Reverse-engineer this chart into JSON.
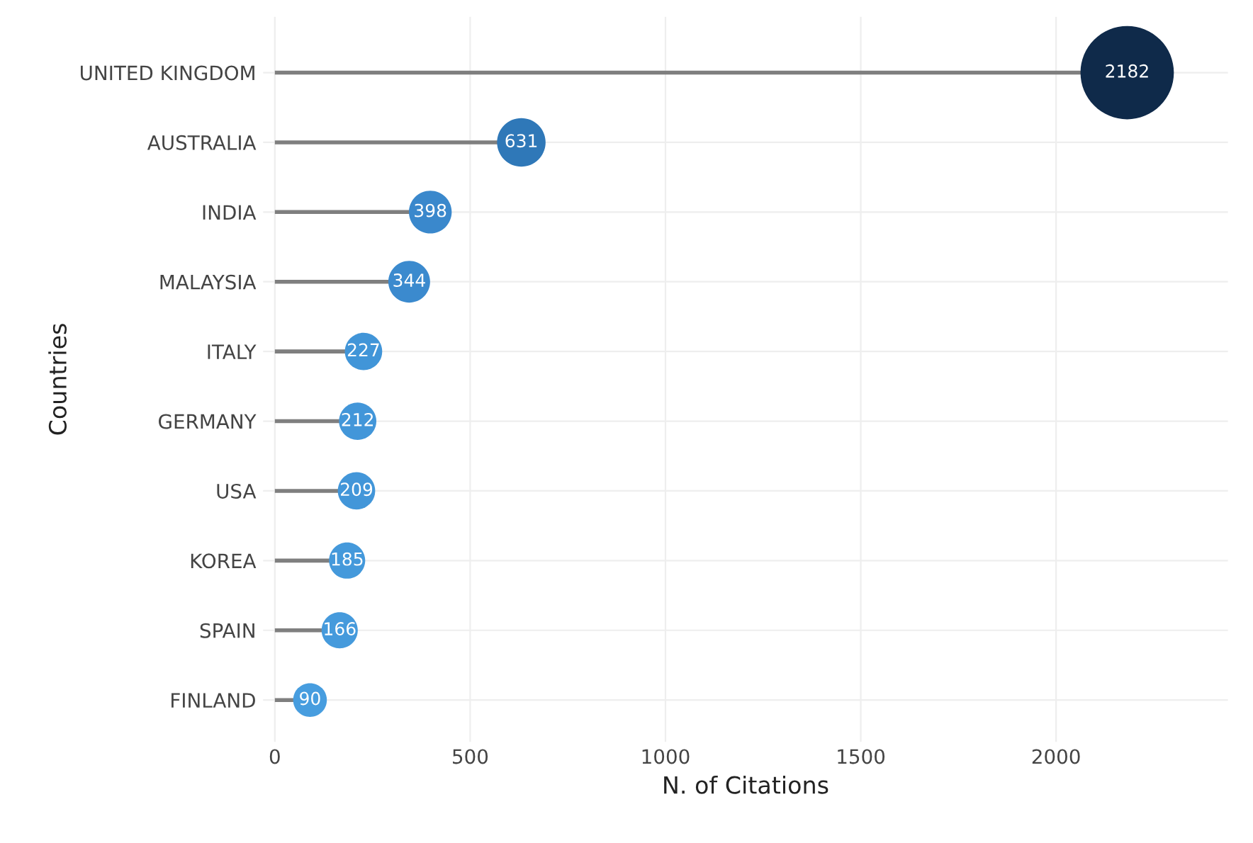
{
  "chart_data": {
    "type": "lollipop",
    "orientation": "horizontal",
    "xlabel": "N. of Citations",
    "ylabel": "Countries",
    "categories": [
      "UNITED KINGDOM",
      "AUSTRALIA",
      "INDIA",
      "MALAYSIA",
      "ITALY",
      "GERMANY",
      "USA",
      "KOREA",
      "SPAIN",
      "FINLAND"
    ],
    "values": [
      2182,
      631,
      398,
      344,
      227,
      212,
      209,
      185,
      166,
      90
    ],
    "colors": [
      "#0f2a4a",
      "#2f78b8",
      "#3a88cc",
      "#3b8ace",
      "#4195d8",
      "#4296d9",
      "#4296d9",
      "#4499db",
      "#459adc",
      "#479ddf"
    ],
    "sizes": [
      1,
      0.27,
      0.21,
      0.2,
      0.16,
      0.16,
      0.16,
      0.15,
      0.15,
      0.13
    ],
    "data_labels": true,
    "xlim": [
      -30,
      2440
    ],
    "xticks": [
      0,
      500,
      1000,
      1500,
      2000
    ],
    "grid": true
  }
}
